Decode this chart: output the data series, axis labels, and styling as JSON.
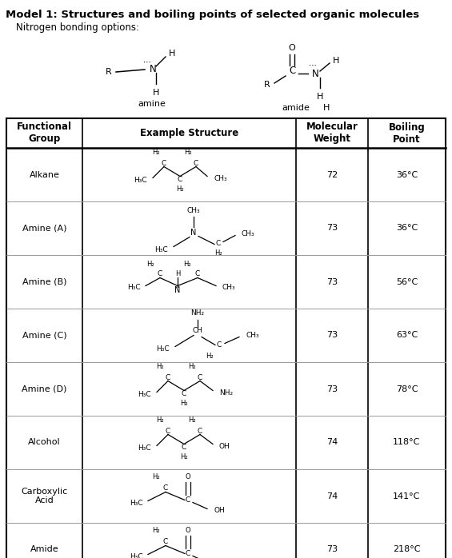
{
  "title": "Model 1: Structures and boiling points of selected organic molecules",
  "subtitle": "Nitrogen bonding options:",
  "bg_color": "#ffffff",
  "table_rows": [
    {
      "group": "Alkane",
      "mw": "72",
      "bp": "36°C"
    },
    {
      "group": "Amine (A)",
      "mw": "73",
      "bp": "36°C"
    },
    {
      "group": "Amine (B)",
      "mw": "73",
      "bp": "56°C"
    },
    {
      "group": "Amine (C)",
      "mw": "73",
      "bp": "63°C"
    },
    {
      "group": "Amine (D)",
      "mw": "73",
      "bp": "78°C"
    },
    {
      "group": "Alcohol",
      "mw": "74",
      "bp": "118°C"
    },
    {
      "group": "Carboxylic\nAcid",
      "mw": "74",
      "bp": "141°C"
    },
    {
      "group": "Amide",
      "mw": "73",
      "bp": "218°C"
    }
  ],
  "col_headers": [
    "Functional\nGroup",
    "Example Structure",
    "Molecular\nWeight",
    "Boiling\nPoint"
  ],
  "fig_w": 5.65,
  "fig_h": 6.98,
  "dpi": 100
}
